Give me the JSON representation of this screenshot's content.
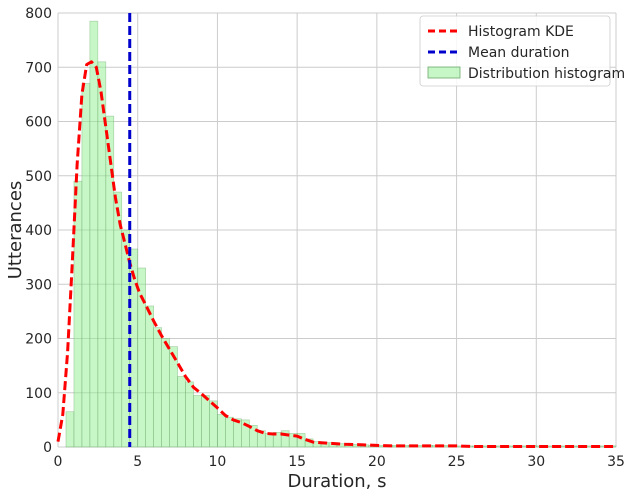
{
  "chart_data": {
    "type": "bar",
    "xlabel": "Duration, s",
    "ylabel": "Utterances",
    "xlim": [
      0,
      35
    ],
    "ylim": [
      0,
      800
    ],
    "xticks": [
      0,
      5,
      10,
      15,
      20,
      25,
      30,
      35
    ],
    "yticks": [
      0,
      100,
      200,
      300,
      400,
      500,
      600,
      700,
      800
    ],
    "grid": true,
    "legend_position": "top-right",
    "bin_width": 0.5,
    "histogram": {
      "name": "Distribution histogram",
      "color": "#90ee90",
      "bin_starts": [
        0.5,
        1.0,
        1.5,
        2.0,
        2.5,
        3.0,
        3.5,
        4.0,
        4.5,
        5.0,
        5.5,
        6.0,
        6.5,
        7.0,
        7.5,
        8.0,
        8.5,
        9.0,
        9.5,
        10.0,
        10.5,
        11.0,
        11.5,
        12.0,
        12.5,
        13.0,
        13.5,
        14.0,
        14.5,
        15.0,
        15.5,
        16.0,
        16.5,
        17.0,
        17.5,
        18.0,
        18.5,
        19.0,
        19.5,
        20.0,
        20.5,
        21.0,
        21.5,
        22.0,
        22.5,
        23.0,
        23.5,
        24.0,
        24.5,
        25.0,
        25.5,
        26.0,
        26.5,
        27.0,
        27.5,
        28.0,
        28.5,
        29.0,
        29.5,
        30.0,
        30.5,
        31.0,
        31.5,
        32.0,
        32.5,
        33.0,
        33.5,
        34.0,
        34.5
      ],
      "counts": [
        65,
        490,
        670,
        785,
        710,
        610,
        470,
        400,
        365,
        330,
        260,
        220,
        200,
        185,
        130,
        120,
        95,
        95,
        85,
        60,
        55,
        52,
        50,
        40,
        30,
        25,
        27,
        30,
        25,
        25,
        15,
        10,
        8,
        8,
        6,
        6,
        5,
        4,
        3,
        3,
        3,
        3,
        3,
        3,
        3,
        3,
        3,
        3,
        2,
        2,
        2,
        2,
        2,
        2,
        2,
        2,
        2,
        2,
        3,
        2,
        2,
        2,
        2,
        2,
        2,
        2,
        2,
        2,
        2
      ]
    },
    "series": [
      {
        "name": "Histogram KDE",
        "color": "#ff0000",
        "style": "dashed",
        "x": [
          0,
          0.3,
          0.6,
          0.9,
          1.2,
          1.5,
          1.8,
          2.1,
          2.4,
          2.7,
          3.0,
          3.3,
          3.6,
          3.9,
          4.2,
          4.5,
          4.8,
          5.1,
          5.5,
          6.0,
          6.5,
          7.0,
          7.5,
          8.0,
          8.5,
          9.0,
          9.5,
          10.0,
          10.5,
          11.0,
          11.5,
          12.0,
          12.5,
          13.0,
          13.5,
          14.0,
          14.5,
          15.0,
          15.5,
          16.0,
          16.5,
          17.0,
          18.0,
          19.0,
          20.0,
          21.0,
          22.0,
          23.0,
          24.0,
          25.0,
          26.0,
          27.0,
          28.0,
          29.0,
          30.0,
          31.0,
          32.0,
          33.0,
          34.0,
          35.0
        ],
        "y": [
          10,
          60,
          175,
          340,
          520,
          650,
          705,
          710,
          700,
          655,
          590,
          525,
          460,
          410,
          375,
          340,
          310,
          285,
          262,
          232,
          205,
          180,
          155,
          130,
          110,
          98,
          85,
          72,
          58,
          50,
          45,
          38,
          30,
          25,
          24,
          24,
          22,
          20,
          14,
          9,
          8,
          7,
          5,
          4,
          3,
          2,
          2,
          2,
          2,
          2,
          1,
          1,
          1,
          1,
          1,
          1,
          1,
          1,
          1,
          1
        ]
      },
      {
        "name": "Mean duration",
        "color": "#0000cc",
        "style": "dashed",
        "x_value": 4.5
      }
    ]
  }
}
